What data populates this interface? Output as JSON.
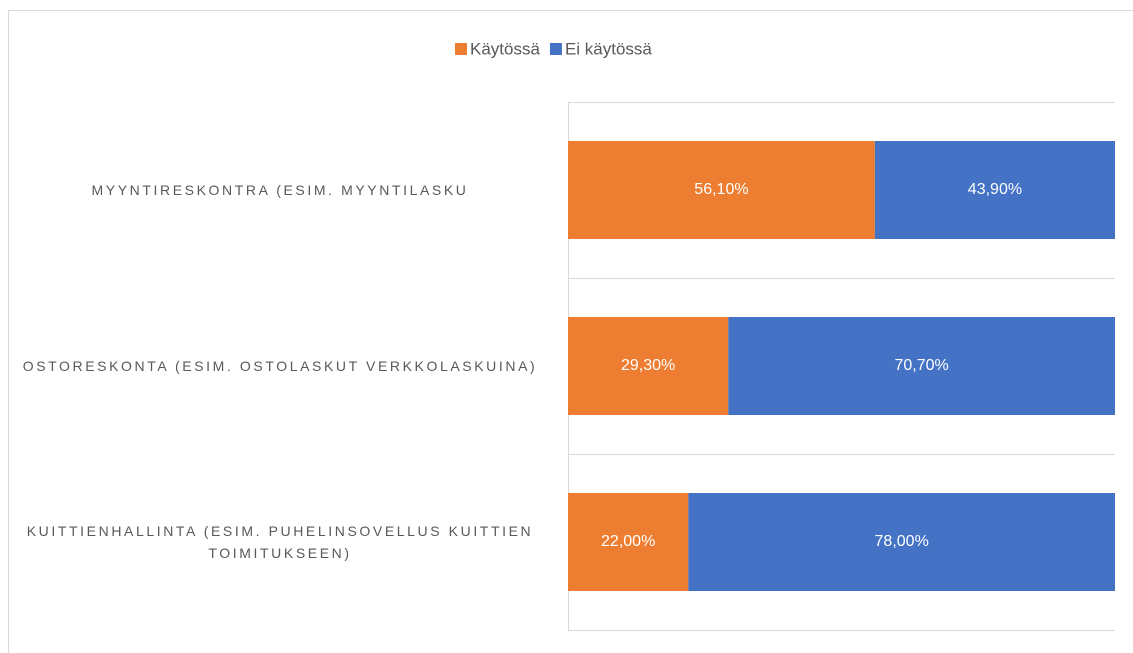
{
  "chart_data": {
    "type": "stacked-bar-horizontal",
    "categories": [
      "MYYNTIRESKONTRA (ESIM. MYYNTILASKU",
      "OSTORESKONTA (ESIM. OSTOLASKUT VERKKOLASKUINA)",
      "KUITTIENHALLINTA (ESIM. PUHELINSOVELLUS KUITTIEN TOIMITUKSEEN)"
    ],
    "series": [
      {
        "name": "Käytössä",
        "color": "#ed7d31",
        "values": [
          56.1,
          29.3,
          22.0
        ],
        "value_labels": [
          "56,10%",
          "29,30%",
          "22,00%"
        ]
      },
      {
        "name": "Ei käytössä",
        "color": "#4472c4",
        "values": [
          43.9,
          70.7,
          78.0
        ],
        "value_labels": [
          "43,90%",
          "70,70%",
          "78,00%"
        ]
      }
    ],
    "xlim": [
      0,
      100
    ],
    "legend": "top"
  }
}
